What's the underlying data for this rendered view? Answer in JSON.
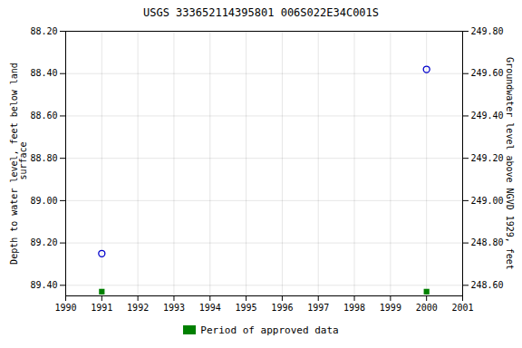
{
  "chart_data": {
    "type": "scatter",
    "title": "USGS 333652114395801 006S022E34C001S",
    "x": [
      1991,
      2000
    ],
    "series": [
      {
        "color": "#0000cc",
        "marker": "open_circle",
        "values": [
          89.25,
          88.38
        ]
      },
      {
        "name": "Period of approved data",
        "color": "#008000",
        "marker": "square",
        "values": [
          89.43,
          89.43
        ]
      }
    ],
    "xlim": [
      1990,
      2001
    ],
    "xticks": [
      1990,
      1991,
      1992,
      1993,
      1994,
      1995,
      1996,
      1997,
      1998,
      1999,
      2000,
      2001
    ],
    "ylim": [
      89.45,
      88.2
    ],
    "yticks": [
      {
        "value": 88.2,
        "label": "88.20"
      },
      {
        "value": 88.4,
        "label": "88.40"
      },
      {
        "value": 88.6,
        "label": "88.60"
      },
      {
        "value": 88.8,
        "label": "88.80"
      },
      {
        "value": 89.0,
        "label": "89.00"
      },
      {
        "value": 89.2,
        "label": "89.20"
      },
      {
        "value": 89.4,
        "label": "89.40"
      }
    ],
    "y2lim": [
      248.55,
      249.8
    ],
    "y2ticks": [
      {
        "value": 249.8,
        "label": "249.80"
      },
      {
        "value": 249.6,
        "label": "249.60"
      },
      {
        "value": 249.4,
        "label": "249.40"
      },
      {
        "value": 249.2,
        "label": "249.20"
      },
      {
        "value": 249.0,
        "label": "249.00"
      },
      {
        "value": 248.8,
        "label": "248.80"
      },
      {
        "value": 248.6,
        "label": "248.60"
      }
    ],
    "ylabel": "Depth to water level, feet below land\n surface",
    "y2label": "Groundwater level above NGVD 1929, feet",
    "grid": true,
    "legend": "bottom"
  }
}
